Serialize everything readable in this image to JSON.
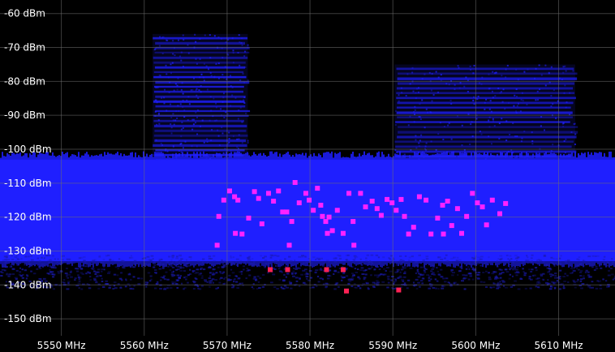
{
  "chart_data": {
    "type": "scatter",
    "title": "",
    "xlabel": "",
    "ylabel": "",
    "x_unit": "MHz",
    "y_unit": "dBm",
    "xlim": [
      5542.6,
      5616.8
    ],
    "ylim": [
      -155,
      -56
    ],
    "grid": true,
    "x_ticks": [
      {
        "value": 5550,
        "label": "5550 MHz"
      },
      {
        "value": 5560,
        "label": "5560 MHz"
      },
      {
        "value": 5570,
        "label": "5570 MHz"
      },
      {
        "value": 5580,
        "label": "5580 MHz"
      },
      {
        "value": 5590,
        "label": "5590 MHz"
      },
      {
        "value": 5600,
        "label": "5600 MHz"
      },
      {
        "value": 5610,
        "label": "5610 MHz"
      }
    ],
    "y_ticks": [
      {
        "value": -60,
        "label": "-60 dBm"
      },
      {
        "value": -70,
        "label": "-70 dBm"
      },
      {
        "value": -80,
        "label": "-80 dBm"
      },
      {
        "value": -90,
        "label": "-90 dBm"
      },
      {
        "value": -100,
        "label": "-100 dBm"
      },
      {
        "value": -110,
        "label": "-110 dBm"
      },
      {
        "value": -120,
        "label": "-120 dBm"
      },
      {
        "value": -130,
        "label": "-130 dBm"
      },
      {
        "value": -140,
        "label": "-140 dBm"
      },
      {
        "value": -150,
        "label": "-150 dBm"
      }
    ],
    "colors": {
      "background": "#000000",
      "grid": "#6e6e6e",
      "spectrum": "#1f1fff",
      "spectrum_dim": "#1a1ab0",
      "points_magenta": "#ff22ff",
      "points_red": "#ff2255"
    },
    "spectrum_bands": [
      {
        "x_start": 5542.6,
        "x_end": 5616.8,
        "top": -103,
        "bottom": -133,
        "kind": "floor"
      },
      {
        "x_start": 5542.6,
        "x_end": 5616.8,
        "top": -131,
        "bottom": -141,
        "kind": "noise"
      },
      {
        "x_start": 5561.0,
        "x_end": 5572.5,
        "top": -66,
        "bottom": -103,
        "kind": "burst"
      },
      {
        "x_start": 5590.2,
        "x_end": 5612.0,
        "top": -75,
        "bottom": -103,
        "kind": "burst"
      }
    ],
    "series": [
      {
        "points": [
          {
            "x": 5569.0,
            "y": -119.8
          },
          {
            "x": 5569.6,
            "y": -115.0
          },
          {
            "x": 5570.3,
            "y": -112.3
          },
          {
            "x": 5570.9,
            "y": -114.0
          },
          {
            "x": 5571.3,
            "y": -115.0
          },
          {
            "x": 5571.8,
            "y": -125.0
          },
          {
            "x": 5572.6,
            "y": -120.3
          },
          {
            "x": 5573.3,
            "y": -112.5
          },
          {
            "x": 5573.8,
            "y": -114.5
          },
          {
            "x": 5574.2,
            "y": -122.0
          },
          {
            "x": 5575.0,
            "y": -113.0
          },
          {
            "x": 5575.6,
            "y": -115.3
          },
          {
            "x": 5576.2,
            "y": -112.3
          },
          {
            "x": 5576.7,
            "y": -118.5
          },
          {
            "x": 5577.2,
            "y": -118.5
          },
          {
            "x": 5577.8,
            "y": -121.3
          },
          {
            "x": 5578.2,
            "y": -109.8
          },
          {
            "x": 5578.7,
            "y": -115.8
          },
          {
            "x": 5579.5,
            "y": -113.0
          },
          {
            "x": 5579.9,
            "y": -115.0
          },
          {
            "x": 5580.4,
            "y": -118.0
          },
          {
            "x": 5580.9,
            "y": -111.5
          },
          {
            "x": 5581.3,
            "y": -116.5
          },
          {
            "x": 5581.5,
            "y": -119.8
          },
          {
            "x": 5581.9,
            "y": -121.3
          },
          {
            "x": 5582.3,
            "y": -120.0
          },
          {
            "x": 5582.7,
            "y": -124.0
          },
          {
            "x": 5583.3,
            "y": -118.0
          },
          {
            "x": 5584.0,
            "y": -124.8
          },
          {
            "x": 5584.7,
            "y": -113.0
          },
          {
            "x": 5585.2,
            "y": -121.3
          },
          {
            "x": 5586.1,
            "y": -113.0
          },
          {
            "x": 5586.7,
            "y": -117.0
          },
          {
            "x": 5587.5,
            "y": -115.3
          },
          {
            "x": 5588.1,
            "y": -117.5
          },
          {
            "x": 5588.6,
            "y": -119.5
          },
          {
            "x": 5589.3,
            "y": -114.8
          },
          {
            "x": 5589.9,
            "y": -115.8
          },
          {
            "x": 5590.4,
            "y": -118.0
          },
          {
            "x": 5591.0,
            "y": -114.8
          },
          {
            "x": 5591.4,
            "y": -119.8
          },
          {
            "x": 5591.9,
            "y": -125.0
          },
          {
            "x": 5592.5,
            "y": -123.0
          },
          {
            "x": 5593.2,
            "y": -114.0
          },
          {
            "x": 5594.0,
            "y": -115.0
          },
          {
            "x": 5594.6,
            "y": -125.0
          },
          {
            "x": 5595.4,
            "y": -120.3
          },
          {
            "x": 5596.0,
            "y": -116.5
          },
          {
            "x": 5596.6,
            "y": -115.3
          },
          {
            "x": 5597.1,
            "y": -122.5
          },
          {
            "x": 5597.8,
            "y": -117.5
          },
          {
            "x": 5598.3,
            "y": -124.8
          },
          {
            "x": 5598.9,
            "y": -119.8
          },
          {
            "x": 5599.6,
            "y": -113.0
          },
          {
            "x": 5600.2,
            "y": -115.8
          },
          {
            "x": 5600.8,
            "y": -117.0
          },
          {
            "x": 5601.3,
            "y": -122.3
          },
          {
            "x": 5602.0,
            "y": -115.0
          },
          {
            "x": 5602.9,
            "y": -119.0
          },
          {
            "x": 5603.6,
            "y": -116.0
          },
          {
            "x": 5568.8,
            "y": -128.3
          },
          {
            "x": 5571.0,
            "y": -124.8
          },
          {
            "x": 5577.5,
            "y": -128.3
          },
          {
            "x": 5585.3,
            "y": -128.3
          },
          {
            "x": 5596.1,
            "y": -125.0
          },
          {
            "x": 5582.1,
            "y": -124.8
          }
        ],
        "color": "#ff22ff"
      },
      {
        "points": [
          {
            "x": 5575.2,
            "y": -135.5
          },
          {
            "x": 5577.3,
            "y": -135.5
          },
          {
            "x": 5582.0,
            "y": -135.5
          },
          {
            "x": 5584.0,
            "y": -135.5
          },
          {
            "x": 5584.4,
            "y": -141.8
          },
          {
            "x": 5590.7,
            "y": -141.5
          }
        ],
        "color": "#ff2255"
      }
    ]
  }
}
